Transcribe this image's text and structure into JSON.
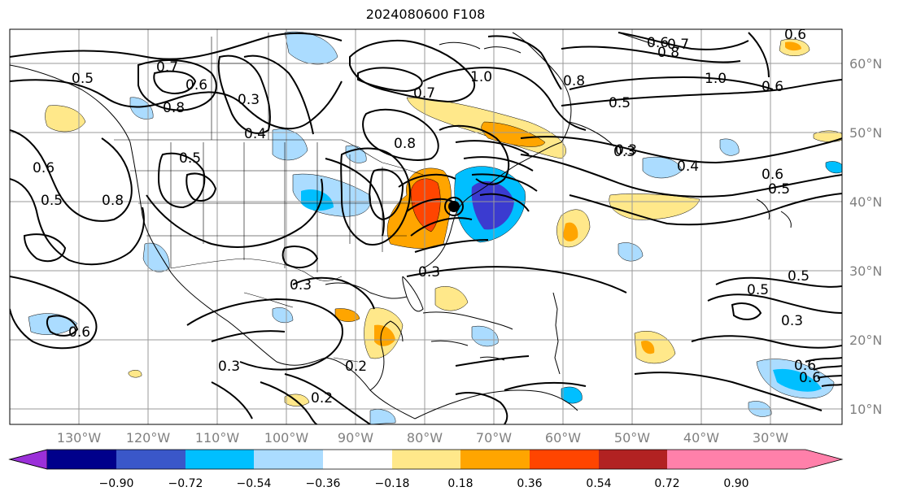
{
  "title": "2024080600 F108",
  "map": {
    "longitude_labels": [
      "130°W",
      "120°W",
      "110°W",
      "100°W",
      "90°W",
      "80°W",
      "70°W",
      "60°W",
      "50°W",
      "40°W",
      "30°W"
    ],
    "latitude_labels": [
      "60°N",
      "50°N",
      "40°N",
      "30°N",
      "20°N",
      "10°N"
    ],
    "contour_labels": [
      "0.5",
      "0.7",
      "0.6",
      "0.8",
      "0.3",
      "0.4",
      "0.5",
      "0.6",
      "0.8",
      "0.5",
      "0.8",
      "0.7",
      "1.0",
      "0.8",
      "0.6",
      "0.8",
      "0.7",
      "1.0",
      "0.6",
      "0.5",
      "0.3",
      "0.4",
      "0.6",
      "0.5",
      "0.3",
      "0.3",
      "0.5",
      "0.3",
      "0.6",
      "0.3",
      "0.2",
      "0.2",
      "0.3",
      "0.6",
      "0.5",
      "0.6",
      "0.6"
    ],
    "colors": {
      "strong_negative": "#3b3bd0",
      "negative": "#00bfff",
      "weak_negative": "#abdcff",
      "weak_positive": "#ffe88a",
      "positive": "#ffa500",
      "strong_positive": "#ff4500"
    }
  },
  "colorbar": {
    "ticks": [
      "−0.90",
      "−0.72",
      "−0.54",
      "−0.36",
      "−0.18",
      "0.18",
      "0.36",
      "0.54",
      "0.72",
      "0.90"
    ],
    "colors": [
      "#9b30d9",
      "#00008b",
      "#3a57c9",
      "#00bfff",
      "#abdcff",
      "#ffffff",
      "#ffe88a",
      "#ffa500",
      "#ff4500",
      "#b22222",
      "#ff80aa"
    ]
  }
}
